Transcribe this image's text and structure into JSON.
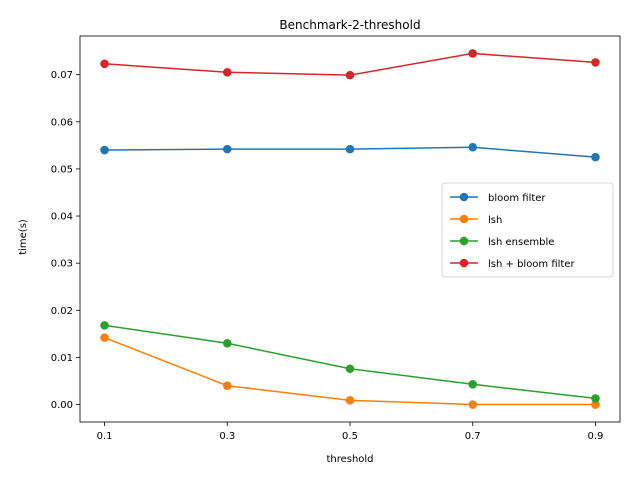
{
  "chart_data": {
    "type": "line",
    "title": "Benchmark-2-threshold",
    "xlabel": "threshold",
    "ylabel": "time(s)",
    "x": [
      0.1,
      0.3,
      0.5,
      0.7,
      0.9
    ],
    "xticks": [
      "0.1",
      "0.3",
      "0.5",
      "0.7",
      "0.9"
    ],
    "yticks": [
      "0.00",
      "0.01",
      "0.02",
      "0.03",
      "0.04",
      "0.05",
      "0.06",
      "0.07"
    ],
    "ylim": [
      -0.0037,
      0.0782
    ],
    "grid": false,
    "legend_position": "center-right",
    "series": [
      {
        "name": "bloom filter",
        "color": "#1f77b4",
        "values": [
          0.054,
          0.0542,
          0.0542,
          0.0546,
          0.0525
        ]
      },
      {
        "name": "lsh",
        "color": "#ff7f0e",
        "values": [
          0.0142,
          0.004,
          0.0009,
          0.0,
          0.0
        ]
      },
      {
        "name": "lsh ensemble",
        "color": "#2ca02c",
        "values": [
          0.0168,
          0.013,
          0.0076,
          0.0043,
          0.0013
        ]
      },
      {
        "name": "lsh + bloom filter",
        "color": "#d62728",
        "values": [
          0.0723,
          0.0705,
          0.0699,
          0.0745,
          0.0726
        ]
      }
    ]
  }
}
